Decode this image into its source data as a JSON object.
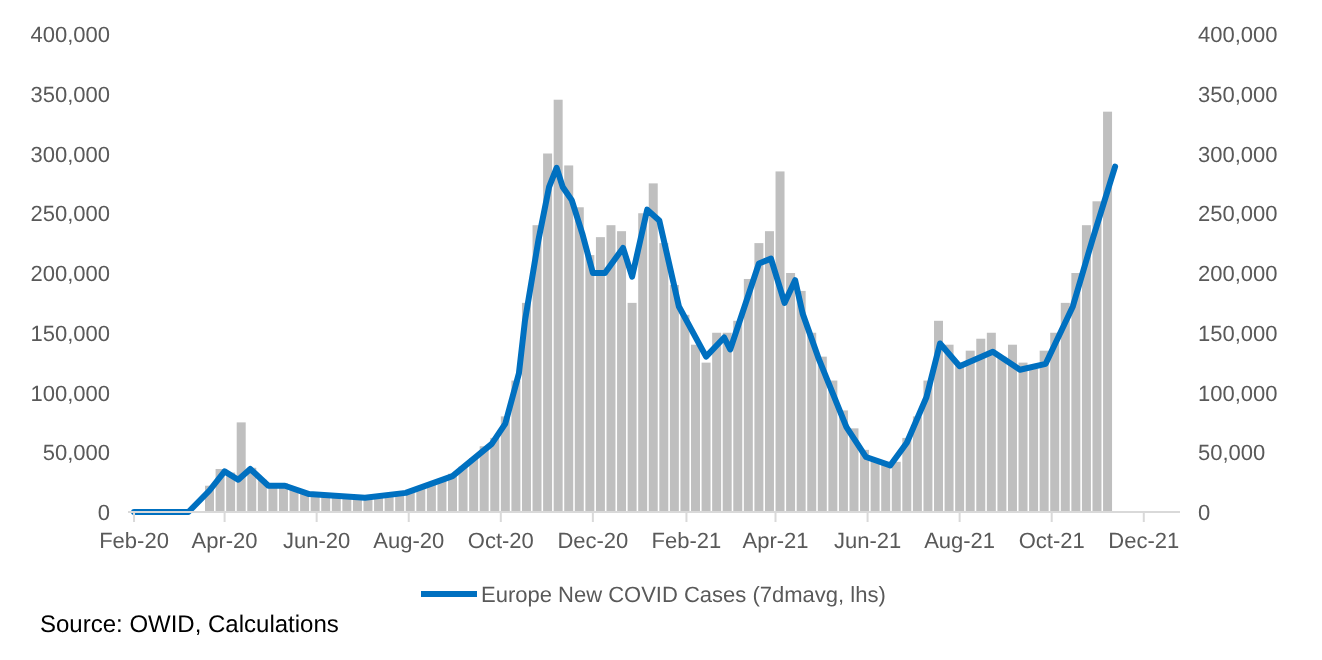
{
  "chart_data": {
    "type": "line",
    "series": [
      {
        "type": "bar",
        "color": "#bfbfbf",
        "x": [
          "2020-03-08",
          "2020-03-15",
          "2020-03-22",
          "2020-03-29",
          "2020-04-05",
          "2020-04-12",
          "2020-04-19",
          "2020-04-26",
          "2020-05-03",
          "2020-05-10",
          "2020-05-17",
          "2020-05-24",
          "2020-05-31",
          "2020-06-07",
          "2020-06-14",
          "2020-06-21",
          "2020-06-28",
          "2020-07-05",
          "2020-07-12",
          "2020-07-19",
          "2020-07-26",
          "2020-08-02",
          "2020-08-09",
          "2020-08-16",
          "2020-08-23",
          "2020-08-30",
          "2020-09-06",
          "2020-09-13",
          "2020-09-20",
          "2020-09-27",
          "2020-10-04",
          "2020-10-11",
          "2020-10-18",
          "2020-10-25",
          "2020-11-01",
          "2020-11-08",
          "2020-11-15",
          "2020-11-22",
          "2020-11-29",
          "2020-12-06",
          "2020-12-13",
          "2020-12-20",
          "2020-12-27",
          "2021-01-03",
          "2021-01-10",
          "2021-01-17",
          "2021-01-24",
          "2021-01-31",
          "2021-02-07",
          "2021-02-14",
          "2021-02-21",
          "2021-02-28",
          "2021-03-07",
          "2021-03-14",
          "2021-03-21",
          "2021-03-28",
          "2021-04-04",
          "2021-04-11",
          "2021-04-18",
          "2021-04-25",
          "2021-05-02",
          "2021-05-09",
          "2021-05-16",
          "2021-05-23",
          "2021-05-30",
          "2021-06-06",
          "2021-06-13",
          "2021-06-20",
          "2021-06-27",
          "2021-07-04",
          "2021-07-11",
          "2021-07-18",
          "2021-07-25",
          "2021-08-01",
          "2021-08-08",
          "2021-08-15",
          "2021-08-22",
          "2021-08-29",
          "2021-09-05",
          "2021-09-12",
          "2021-09-19",
          "2021-09-26",
          "2021-10-03",
          "2021-10-10",
          "2021-10-17",
          "2021-10-24",
          "2021-10-31",
          "2021-11-07"
        ],
        "values": [
          2000,
          null,
          22000,
          36000,
          33000,
          75000,
          37000,
          27000,
          21000,
          24000,
          20000,
          16000,
          14000,
          14000,
          13000,
          13000,
          12000,
          12000,
          13000,
          14000,
          16000,
          17000,
          20000,
          23000,
          27000,
          32000,
          38000,
          45000,
          55000,
          62000,
          80000,
          110000,
          175000,
          240000,
          300000,
          345000,
          290000,
          255000,
          215000,
          230000,
          240000,
          235000,
          175000,
          250000,
          275000,
          225000,
          190000,
          165000,
          140000,
          125000,
          150000,
          150000,
          160000,
          195000,
          225000,
          235000,
          285000,
          200000,
          185000,
          150000,
          130000,
          110000,
          85000,
          70000,
          52000,
          44000,
          40000,
          42000,
          62000,
          80000,
          110000,
          160000,
          140000,
          125000,
          135000,
          145000,
          150000,
          130000,
          140000,
          125000,
          120000,
          135000,
          150000,
          175000,
          200000,
          240000,
          260000,
          335000
        ]
      },
      {
        "name": "Europe New COVID Cases (7dmavg, lhs)",
        "color": "#0070c0",
        "x": [
          "2020-02-01",
          "2020-03-08",
          "2020-03-22",
          "2020-04-01",
          "2020-04-10",
          "2020-04-18",
          "2020-04-30",
          "2020-05-11",
          "2020-05-27",
          "2020-07-03",
          "2020-07-30",
          "2020-08-30",
          "2020-09-25",
          "2020-10-04",
          "2020-10-13",
          "2020-10-17",
          "2020-10-26",
          "2020-11-02",
          "2020-11-07",
          "2020-11-11",
          "2020-11-17",
          "2020-11-24",
          "2020-12-01",
          "2020-12-09",
          "2020-12-21",
          "2020-12-27",
          "2021-01-06",
          "2021-01-14",
          "2021-01-27",
          "2021-02-14",
          "2021-02-26",
          "2021-03-02",
          "2021-03-21",
          "2021-03-29",
          "2021-04-07",
          "2021-04-14",
          "2021-04-19",
          "2021-04-30",
          "2021-05-18",
          "2021-05-31",
          "2021-06-16",
          "2021-06-27",
          "2021-07-10",
          "2021-07-19",
          "2021-08-01",
          "2021-08-23",
          "2021-09-10",
          "2021-09-27",
          "2021-10-15",
          "2021-10-28",
          "2021-11-12"
        ],
        "values": [
          0,
          0,
          18000,
          34000,
          27000,
          36000,
          22000,
          22000,
          15000,
          12000,
          16000,
          30000,
          57000,
          74000,
          116000,
          160000,
          228000,
          272000,
          288000,
          272000,
          261000,
          233000,
          200000,
          200000,
          221000,
          197000,
          253000,
          244000,
          172000,
          130000,
          146000,
          136000,
          208000,
          212000,
          175000,
          194000,
          166000,
          127000,
          71000,
          46000,
          39000,
          58000,
          96000,
          141000,
          122000,
          134000,
          119000,
          124000,
          172000,
          228000,
          289000
        ]
      }
    ],
    "xlim": [
      "2020-01-28",
      "2021-12-25"
    ],
    "xticks": [
      {
        "value": "2020-02-01",
        "label": "Feb-20"
      },
      {
        "value": "2020-04-01",
        "label": "Apr-20"
      },
      {
        "value": "2020-06-01",
        "label": "Jun-20"
      },
      {
        "value": "2020-08-01",
        "label": "Aug-20"
      },
      {
        "value": "2020-10-01",
        "label": "Oct-20"
      },
      {
        "value": "2020-12-01",
        "label": "Dec-20"
      },
      {
        "value": "2021-02-01",
        "label": "Feb-21"
      },
      {
        "value": "2021-04-01",
        "label": "Apr-21"
      },
      {
        "value": "2021-06-01",
        "label": "Jun-21"
      },
      {
        "value": "2021-08-01",
        "label": "Aug-21"
      },
      {
        "value": "2021-10-01",
        "label": "Oct-21"
      },
      {
        "value": "2021-12-01",
        "label": "Dec-21"
      }
    ],
    "ylim": [
      0,
      400000
    ],
    "yticks": [
      {
        "value": 0,
        "label": "0"
      },
      {
        "value": 50000,
        "label": "50,000"
      },
      {
        "value": 100000,
        "label": "100,000"
      },
      {
        "value": 150000,
        "label": "150,000"
      },
      {
        "value": 200000,
        "label": "200,000"
      },
      {
        "value": 250000,
        "label": "250,000"
      },
      {
        "value": 300000,
        "label": "300,000"
      },
      {
        "value": 350000,
        "label": "350,000"
      },
      {
        "value": 400000,
        "label": "400,000"
      }
    ],
    "y2lim": [
      0,
      400000
    ],
    "y2ticks": [
      {
        "value": 0,
        "label": "0"
      },
      {
        "value": 50000,
        "label": "50,000"
      },
      {
        "value": 100000,
        "label": "100,000"
      },
      {
        "value": 150000,
        "label": "150,000"
      },
      {
        "value": 200000,
        "label": "200,000"
      },
      {
        "value": 250000,
        "label": "250,000"
      },
      {
        "value": 300000,
        "label": "300,000"
      },
      {
        "value": 350000,
        "label": "350,000"
      },
      {
        "value": 400000,
        "label": "400,000"
      }
    ],
    "legend": "bottom",
    "annotations": [
      "Source: OWID, Calculations"
    ]
  }
}
